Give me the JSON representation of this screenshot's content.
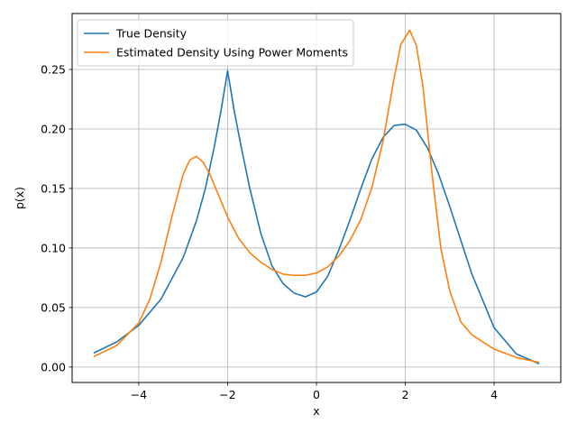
{
  "chart_data": {
    "type": "line",
    "title": "",
    "xlabel": "x",
    "ylabel": "p(x)",
    "xlim": [
      -5.5,
      5.5
    ],
    "ylim": [
      -0.013,
      0.297
    ],
    "xticks": [
      -4,
      -2,
      0,
      2,
      4
    ],
    "xtick_labels": [
      "−4",
      "−2",
      "0",
      "2",
      "4"
    ],
    "yticks": [
      0.0,
      0.05,
      0.1,
      0.15,
      0.2,
      0.25
    ],
    "ytick_labels": [
      "0.00",
      "0.05",
      "0.10",
      "0.15",
      "0.20",
      "0.25"
    ],
    "grid": true,
    "legend_position": "top-left",
    "series": [
      {
        "name": "True Density",
        "color": "#1f77b4",
        "x": [
          -5.0,
          -4.5,
          -4.0,
          -3.5,
          -3.0,
          -2.7,
          -2.5,
          -2.3,
          -2.15,
          -2.0,
          -1.85,
          -1.7,
          -1.5,
          -1.25,
          -1.0,
          -0.75,
          -0.5,
          -0.25,
          0.0,
          0.25,
          0.5,
          0.75,
          1.0,
          1.25,
          1.5,
          1.75,
          2.0,
          2.25,
          2.5,
          2.75,
          3.0,
          3.5,
          4.0,
          4.5,
          5.0
        ],
        "y": [
          0.012,
          0.021,
          0.035,
          0.057,
          0.092,
          0.123,
          0.15,
          0.185,
          0.215,
          0.249,
          0.215,
          0.186,
          0.15,
          0.112,
          0.085,
          0.07,
          0.062,
          0.059,
          0.063,
          0.076,
          0.098,
          0.123,
          0.15,
          0.175,
          0.193,
          0.203,
          0.204,
          0.199,
          0.184,
          0.162,
          0.135,
          0.078,
          0.033,
          0.011,
          0.003
        ]
      },
      {
        "name": "Estimated Density Using Power Moments",
        "color": "#ff7f0e",
        "x": [
          -5.0,
          -4.5,
          -4.0,
          -3.75,
          -3.5,
          -3.25,
          -3.0,
          -2.85,
          -2.7,
          -2.55,
          -2.4,
          -2.2,
          -2.0,
          -1.75,
          -1.5,
          -1.25,
          -1.0,
          -0.75,
          -0.5,
          -0.25,
          0.0,
          0.25,
          0.5,
          0.75,
          1.0,
          1.25,
          1.5,
          1.75,
          1.9,
          2.1,
          2.25,
          2.4,
          2.6,
          2.8,
          3.0,
          3.25,
          3.5,
          4.0,
          4.5,
          5.0
        ],
        "y": [
          0.009,
          0.018,
          0.037,
          0.057,
          0.088,
          0.127,
          0.162,
          0.174,
          0.177,
          0.172,
          0.162,
          0.144,
          0.126,
          0.108,
          0.096,
          0.088,
          0.082,
          0.078,
          0.077,
          0.077,
          0.079,
          0.084,
          0.093,
          0.106,
          0.124,
          0.151,
          0.19,
          0.243,
          0.271,
          0.283,
          0.27,
          0.235,
          0.163,
          0.1,
          0.064,
          0.038,
          0.027,
          0.015,
          0.008,
          0.004
        ]
      }
    ]
  }
}
